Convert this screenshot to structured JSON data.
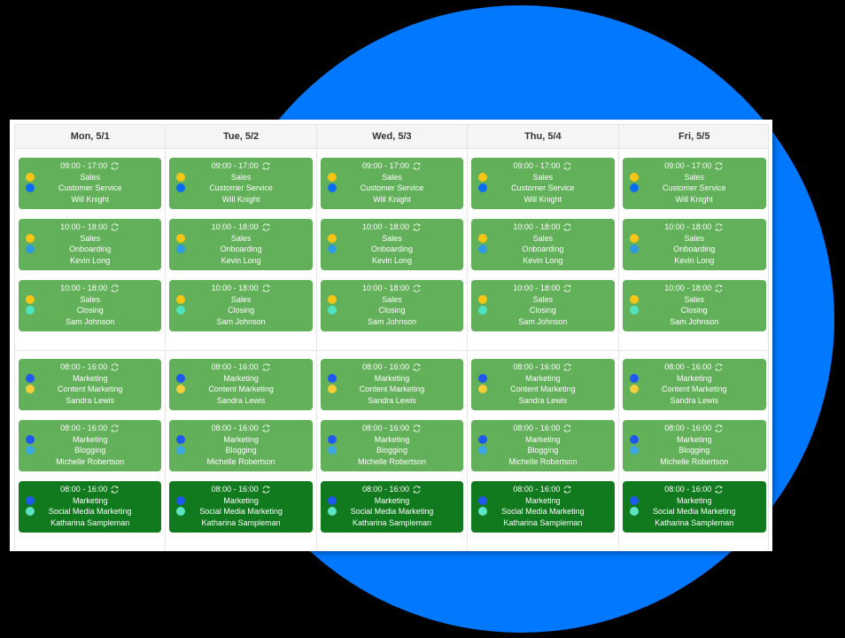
{
  "background": {
    "circle_color": "#0078ff",
    "page_color": "#000000"
  },
  "colors": {
    "card_light": "#63b05a",
    "card_dark": "#127a1e",
    "sales": "#f8c514",
    "customer_service": "#0a6cf5",
    "onboarding": "#2e9be0",
    "closing": "#4fe3c1",
    "marketing": "#1f58ee",
    "content_marketing": "#f5cf3a",
    "blogging": "#3aa7e3",
    "social_media_marketing": "#5ce3c4"
  },
  "days": [
    {
      "label": "Mon, 5/1"
    },
    {
      "label": "Tue, 5/2"
    },
    {
      "label": "Wed, 5/3"
    },
    {
      "label": "Thu, 5/4"
    },
    {
      "label": "Fri, 5/5"
    }
  ],
  "icons": {
    "sync": "sync-icon"
  },
  "groups": [
    {
      "shifts": [
        {
          "time": "09:00 - 17:00",
          "department": "Sales",
          "role": "Customer Service",
          "employee": "Will Knight",
          "dot1": "#f8c514",
          "dot2": "#0a6cf5",
          "variant": "light"
        },
        {
          "time": "10:00 - 18:00",
          "department": "Sales",
          "role": "Onboarding",
          "employee": "Kevin Long",
          "dot1": "#f8c514",
          "dot2": "#2e9be0",
          "variant": "light"
        },
        {
          "time": "10:00 - 18:00",
          "department": "Sales",
          "role": "Closing",
          "employee": "Sam Johnson",
          "dot1": "#f8c514",
          "dot2": "#4fe3c1",
          "variant": "light"
        }
      ]
    },
    {
      "shifts": [
        {
          "time": "08:00 - 16:00",
          "department": "Marketing",
          "role": "Content Marketing",
          "employee": "Sandra Lewis",
          "dot1": "#1f58ee",
          "dot2": "#f5cf3a",
          "variant": "light"
        },
        {
          "time": "08:00 - 16:00",
          "department": "Marketing",
          "role": "Blogging",
          "employee": "Michelle Robertson",
          "dot1": "#1f58ee",
          "dot2": "#3aa7e3",
          "variant": "light"
        },
        {
          "time": "08:00 - 16:00",
          "department": "Marketing",
          "role": "Social Media Marketing",
          "employee": "Katharina Sampleman",
          "dot1": "#1f58ee",
          "dot2": "#5ce3c4",
          "variant": "dark"
        }
      ]
    }
  ]
}
